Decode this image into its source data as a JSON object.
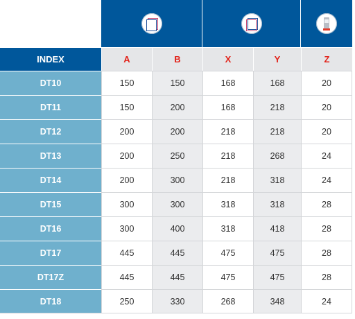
{
  "header": {
    "index_label": "INDEX",
    "groups": [
      {
        "icon": "panel-front-icon",
        "columns": [
          "A",
          "B"
        ]
      },
      {
        "icon": "panel-back-icon",
        "columns": [
          "X",
          "Y"
        ]
      },
      {
        "icon": "device-depth-icon",
        "columns": [
          "Z"
        ]
      }
    ],
    "columns": [
      "A",
      "B",
      "X",
      "Y",
      "Z"
    ]
  },
  "colors": {
    "header_blue": "#00579b",
    "index_column": "#6fb0cd",
    "column_letter": "#e2231a",
    "shaded_cell": "#ebecee"
  },
  "rows": [
    {
      "index": "DT10",
      "values": [
        "150",
        "150",
        "168",
        "168",
        "20"
      ]
    },
    {
      "index": "DT11",
      "values": [
        "150",
        "200",
        "168",
        "218",
        "20"
      ]
    },
    {
      "index": "DT12",
      "values": [
        "200",
        "200",
        "218",
        "218",
        "20"
      ]
    },
    {
      "index": "DT13",
      "values": [
        "200",
        "250",
        "218",
        "268",
        "24"
      ]
    },
    {
      "index": "DT14",
      "values": [
        "200",
        "300",
        "218",
        "318",
        "24"
      ]
    },
    {
      "index": "DT15",
      "values": [
        "300",
        "300",
        "318",
        "318",
        "28"
      ]
    },
    {
      "index": "DT16",
      "values": [
        "300",
        "400",
        "318",
        "418",
        "28"
      ]
    },
    {
      "index": "DT17",
      "values": [
        "445",
        "445",
        "475",
        "475",
        "28"
      ]
    },
    {
      "index": "DT17Z",
      "values": [
        "445",
        "445",
        "475",
        "475",
        "28"
      ]
    },
    {
      "index": "DT18",
      "values": [
        "250",
        "330",
        "268",
        "348",
        "24"
      ]
    }
  ]
}
